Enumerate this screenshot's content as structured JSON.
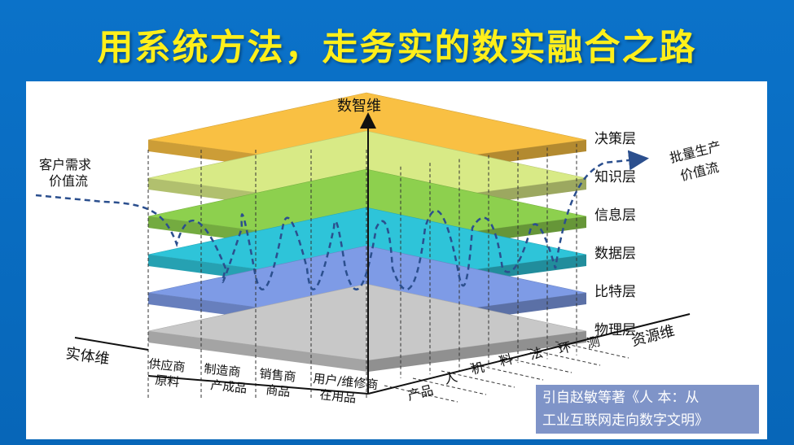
{
  "title": "用系统方法，走务实的数实融合之路",
  "axes": {
    "vertical": "数智维",
    "horizontal_left": "实体维",
    "horizontal_right": "资源维"
  },
  "layers": [
    {
      "name": "决策层",
      "color": "#f9c043"
    },
    {
      "name": "知识层",
      "color": "#d8ea86"
    },
    {
      "name": "信息层",
      "color": "#8dd04e"
    },
    {
      "name": "数据层",
      "color": "#2ec4d9"
    },
    {
      "name": "比特层",
      "color": "#7e9be6"
    },
    {
      "name": "物理层",
      "color": "#c8c8c8"
    }
  ],
  "entity_labels": [
    [
      "供应商",
      "原料"
    ],
    [
      "制造商",
      "产成品"
    ],
    [
      "销售商",
      "商品"
    ],
    [
      "用户/维修商",
      "在用品"
    ]
  ],
  "resource_labels": [
    "产品",
    "人",
    "机",
    "料",
    "法",
    "环",
    "测"
  ],
  "flows": {
    "left": [
      "客户需求",
      "价值流"
    ],
    "right": [
      "批量生产",
      "价值流"
    ]
  },
  "citation": [
    "引自赵敏等著《人 本：从",
    "工业互联网走向数字文明》"
  ]
}
